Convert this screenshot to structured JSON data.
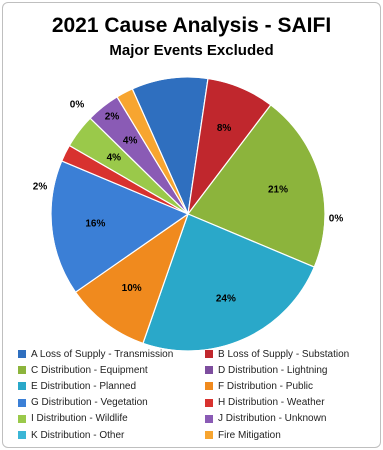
{
  "chart_data": {
    "type": "pie",
    "title": "2021 Cause Analysis - SAIFI",
    "subtitle": "Major Events Excluded",
    "slices": [
      {
        "name": "A Loss of Supply - Transmission",
        "value": 9,
        "label": "9%",
        "color": "#2f6fbf"
      },
      {
        "name": "B Loss of Supply - Substation",
        "value": 8,
        "label": "8%",
        "color": "#c0272d"
      },
      {
        "name": "C Distribution - Equipment",
        "value": 21,
        "label": "21%",
        "color": "#8cb43c"
      },
      {
        "name": "D Distribution - Lightning",
        "value": 0,
        "label": "0%",
        "color": "#7d4e9e"
      },
      {
        "name": "E Distribution - Planned",
        "value": 24,
        "label": "24%",
        "color": "#2aa8c9"
      },
      {
        "name": "F Distribution - Public",
        "value": 10,
        "label": "10%",
        "color": "#f08a1e"
      },
      {
        "name": "G Distribution - Vegetation",
        "value": 16,
        "label": "16%",
        "color": "#3b7fd6"
      },
      {
        "name": "H Distribution - Weather",
        "value": 2,
        "label": "2%",
        "color": "#d8322f"
      },
      {
        "name": "I Distribution - Wildlife",
        "value": 4,
        "label": "4%",
        "color": "#9ac94a"
      },
      {
        "name": "J Distribution - Unknown",
        "value": 4,
        "label": "4%",
        "color": "#8a5bb5"
      },
      {
        "name": "K Distribution - Other",
        "value": 0,
        "label": "0%",
        "color": "#3bb6d6"
      },
      {
        "name": "Fire Mitigation",
        "value": 2,
        "label": "2%",
        "color": "#f7a530"
      }
    ]
  }
}
